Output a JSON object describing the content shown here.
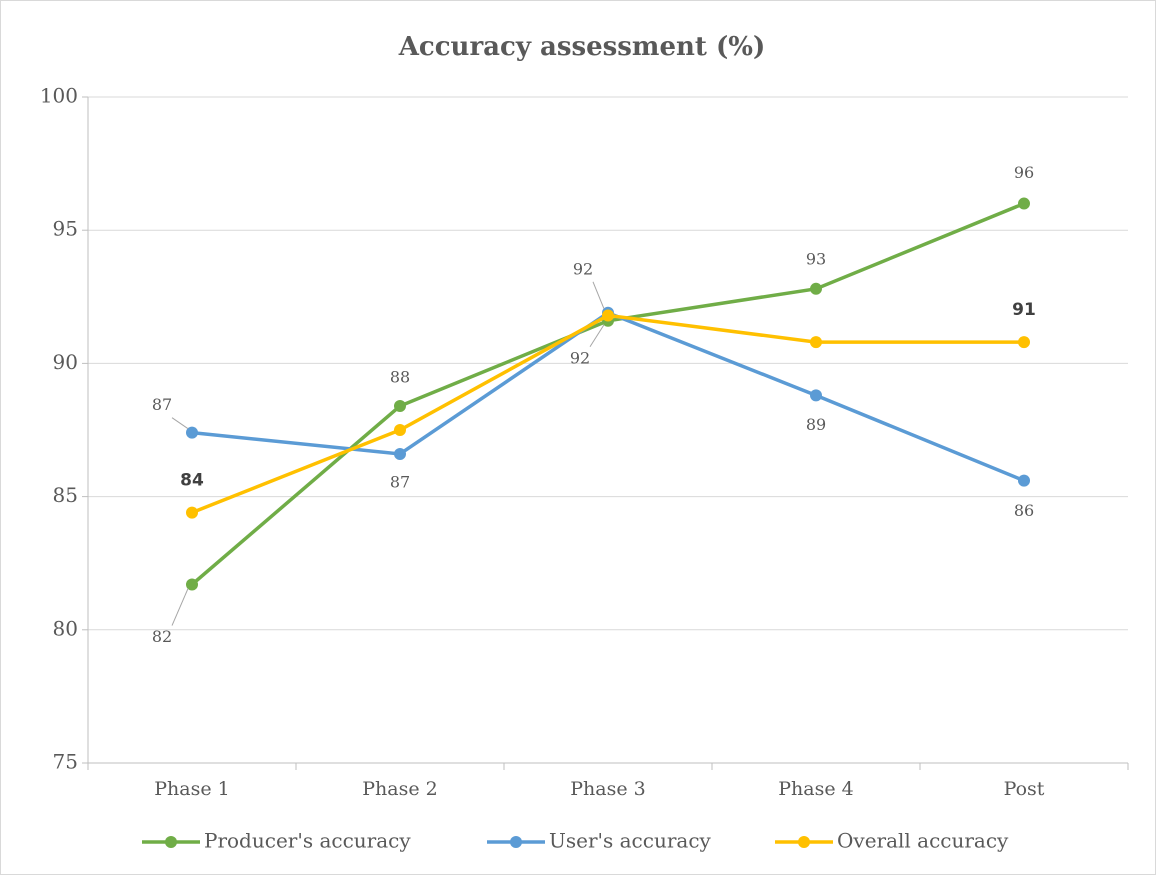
{
  "chart_data": {
    "type": "line",
    "title": "Accuracy assessment (%)",
    "categories": [
      "Phase 1",
      "Phase 2",
      "Phase 3",
      "Phase 4",
      "Post"
    ],
    "ylim": [
      75,
      100
    ],
    "yticks": [
      75,
      80,
      85,
      90,
      95,
      100
    ],
    "grid": true,
    "legend": "bottom",
    "series": [
      {
        "name": "Producer's accuracy",
        "color": "#70ad47",
        "values": [
          81.7,
          88.4,
          91.6,
          92.8,
          96.0
        ],
        "value_labels": [
          "82",
          "88",
          "92",
          "93",
          "96"
        ]
      },
      {
        "name": "User's accuracy",
        "color": "#5b9bd5",
        "values": [
          87.4,
          86.6,
          91.9,
          88.8,
          85.6
        ],
        "value_labels": [
          "87",
          "87",
          "92",
          "89",
          "86"
        ]
      },
      {
        "name": "Overall accuracy",
        "color": "#ffc000",
        "values": [
          84.4,
          87.5,
          91.8,
          90.8,
          90.8
        ],
        "value_labels": [
          "84",
          null,
          null,
          null,
          "91"
        ]
      }
    ]
  }
}
